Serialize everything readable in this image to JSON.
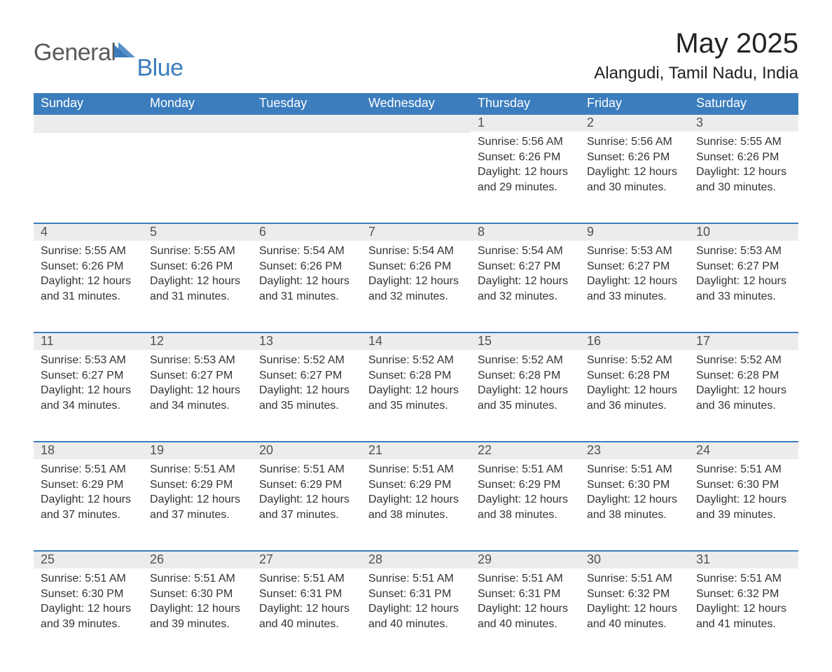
{
  "logo": {
    "word1": "General",
    "word2": "Blue"
  },
  "title": "May 2025",
  "location": "Alangudi, Tamil Nadu, India",
  "colors": {
    "header_bg": "#3b7dbd",
    "header_text": "#ffffff",
    "band_bg": "#ececec",
    "text": "#333333",
    "logo_gray": "#5a5a5a",
    "logo_blue": "#3b7dbd"
  },
  "weekdays": [
    "Sunday",
    "Monday",
    "Tuesday",
    "Wednesday",
    "Thursday",
    "Friday",
    "Saturday"
  ],
  "weeks": [
    [
      null,
      null,
      null,
      null,
      {
        "n": "1",
        "sunrise": "5:56 AM",
        "sunset": "6:26 PM",
        "daylight": "12 hours and 29 minutes."
      },
      {
        "n": "2",
        "sunrise": "5:56 AM",
        "sunset": "6:26 PM",
        "daylight": "12 hours and 30 minutes."
      },
      {
        "n": "3",
        "sunrise": "5:55 AM",
        "sunset": "6:26 PM",
        "daylight": "12 hours and 30 minutes."
      }
    ],
    [
      {
        "n": "4",
        "sunrise": "5:55 AM",
        "sunset": "6:26 PM",
        "daylight": "12 hours and 31 minutes."
      },
      {
        "n": "5",
        "sunrise": "5:55 AM",
        "sunset": "6:26 PM",
        "daylight": "12 hours and 31 minutes."
      },
      {
        "n": "6",
        "sunrise": "5:54 AM",
        "sunset": "6:26 PM",
        "daylight": "12 hours and 31 minutes."
      },
      {
        "n": "7",
        "sunrise": "5:54 AM",
        "sunset": "6:26 PM",
        "daylight": "12 hours and 32 minutes."
      },
      {
        "n": "8",
        "sunrise": "5:54 AM",
        "sunset": "6:27 PM",
        "daylight": "12 hours and 32 minutes."
      },
      {
        "n": "9",
        "sunrise": "5:53 AM",
        "sunset": "6:27 PM",
        "daylight": "12 hours and 33 minutes."
      },
      {
        "n": "10",
        "sunrise": "5:53 AM",
        "sunset": "6:27 PM",
        "daylight": "12 hours and 33 minutes."
      }
    ],
    [
      {
        "n": "11",
        "sunrise": "5:53 AM",
        "sunset": "6:27 PM",
        "daylight": "12 hours and 34 minutes."
      },
      {
        "n": "12",
        "sunrise": "5:53 AM",
        "sunset": "6:27 PM",
        "daylight": "12 hours and 34 minutes."
      },
      {
        "n": "13",
        "sunrise": "5:52 AM",
        "sunset": "6:27 PM",
        "daylight": "12 hours and 35 minutes."
      },
      {
        "n": "14",
        "sunrise": "5:52 AM",
        "sunset": "6:28 PM",
        "daylight": "12 hours and 35 minutes."
      },
      {
        "n": "15",
        "sunrise": "5:52 AM",
        "sunset": "6:28 PM",
        "daylight": "12 hours and 35 minutes."
      },
      {
        "n": "16",
        "sunrise": "5:52 AM",
        "sunset": "6:28 PM",
        "daylight": "12 hours and 36 minutes."
      },
      {
        "n": "17",
        "sunrise": "5:52 AM",
        "sunset": "6:28 PM",
        "daylight": "12 hours and 36 minutes."
      }
    ],
    [
      {
        "n": "18",
        "sunrise": "5:51 AM",
        "sunset": "6:29 PM",
        "daylight": "12 hours and 37 minutes."
      },
      {
        "n": "19",
        "sunrise": "5:51 AM",
        "sunset": "6:29 PM",
        "daylight": "12 hours and 37 minutes."
      },
      {
        "n": "20",
        "sunrise": "5:51 AM",
        "sunset": "6:29 PM",
        "daylight": "12 hours and 37 minutes."
      },
      {
        "n": "21",
        "sunrise": "5:51 AM",
        "sunset": "6:29 PM",
        "daylight": "12 hours and 38 minutes."
      },
      {
        "n": "22",
        "sunrise": "5:51 AM",
        "sunset": "6:29 PM",
        "daylight": "12 hours and 38 minutes."
      },
      {
        "n": "23",
        "sunrise": "5:51 AM",
        "sunset": "6:30 PM",
        "daylight": "12 hours and 38 minutes."
      },
      {
        "n": "24",
        "sunrise": "5:51 AM",
        "sunset": "6:30 PM",
        "daylight": "12 hours and 39 minutes."
      }
    ],
    [
      {
        "n": "25",
        "sunrise": "5:51 AM",
        "sunset": "6:30 PM",
        "daylight": "12 hours and 39 minutes."
      },
      {
        "n": "26",
        "sunrise": "5:51 AM",
        "sunset": "6:30 PM",
        "daylight": "12 hours and 39 minutes."
      },
      {
        "n": "27",
        "sunrise": "5:51 AM",
        "sunset": "6:31 PM",
        "daylight": "12 hours and 40 minutes."
      },
      {
        "n": "28",
        "sunrise": "5:51 AM",
        "sunset": "6:31 PM",
        "daylight": "12 hours and 40 minutes."
      },
      {
        "n": "29",
        "sunrise": "5:51 AM",
        "sunset": "6:31 PM",
        "daylight": "12 hours and 40 minutes."
      },
      {
        "n": "30",
        "sunrise": "5:51 AM",
        "sunset": "6:32 PM",
        "daylight": "12 hours and 40 minutes."
      },
      {
        "n": "31",
        "sunrise": "5:51 AM",
        "sunset": "6:32 PM",
        "daylight": "12 hours and 41 minutes."
      }
    ]
  ],
  "labels": {
    "sunrise": "Sunrise: ",
    "sunset": "Sunset: ",
    "daylight": "Daylight: "
  }
}
